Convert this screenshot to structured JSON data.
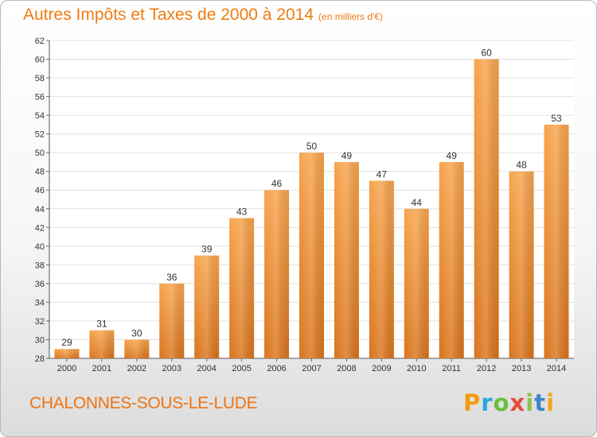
{
  "header": {
    "title": "Autres Impôts et Taxes de 2000 à 2014",
    "unit": "(en milliers d'€)"
  },
  "footer": {
    "commune": "CHALONNES-SOUS-LE-LUDE",
    "logo_letters": [
      "P",
      "r",
      "o",
      "x",
      "i",
      "t",
      "i"
    ]
  },
  "colors": {
    "bar_top": "#f7a44c",
    "bar_bottom": "#d9741c",
    "title": "#f07c12",
    "grid": "#e0e0e0"
  },
  "chart_data": {
    "type": "bar",
    "title": "Autres Impôts et Taxes de 2000 à 2014",
    "subtitle": "(en milliers d'€)",
    "xlabel": "",
    "ylabel": "",
    "categories": [
      "2000",
      "2001",
      "2002",
      "2003",
      "2004",
      "2005",
      "2006",
      "2007",
      "2008",
      "2009",
      "2010",
      "2011",
      "2012",
      "2013",
      "2014"
    ],
    "values": [
      29,
      31,
      30,
      36,
      39,
      43,
      46,
      50,
      49,
      47,
      44,
      49,
      60,
      48,
      53
    ],
    "ylim": [
      28,
      62
    ],
    "yticks": [
      28,
      30,
      32,
      34,
      36,
      38,
      40,
      42,
      44,
      46,
      48,
      50,
      52,
      54,
      56,
      58,
      60,
      62
    ],
    "grid": true,
    "data_labels": true
  }
}
